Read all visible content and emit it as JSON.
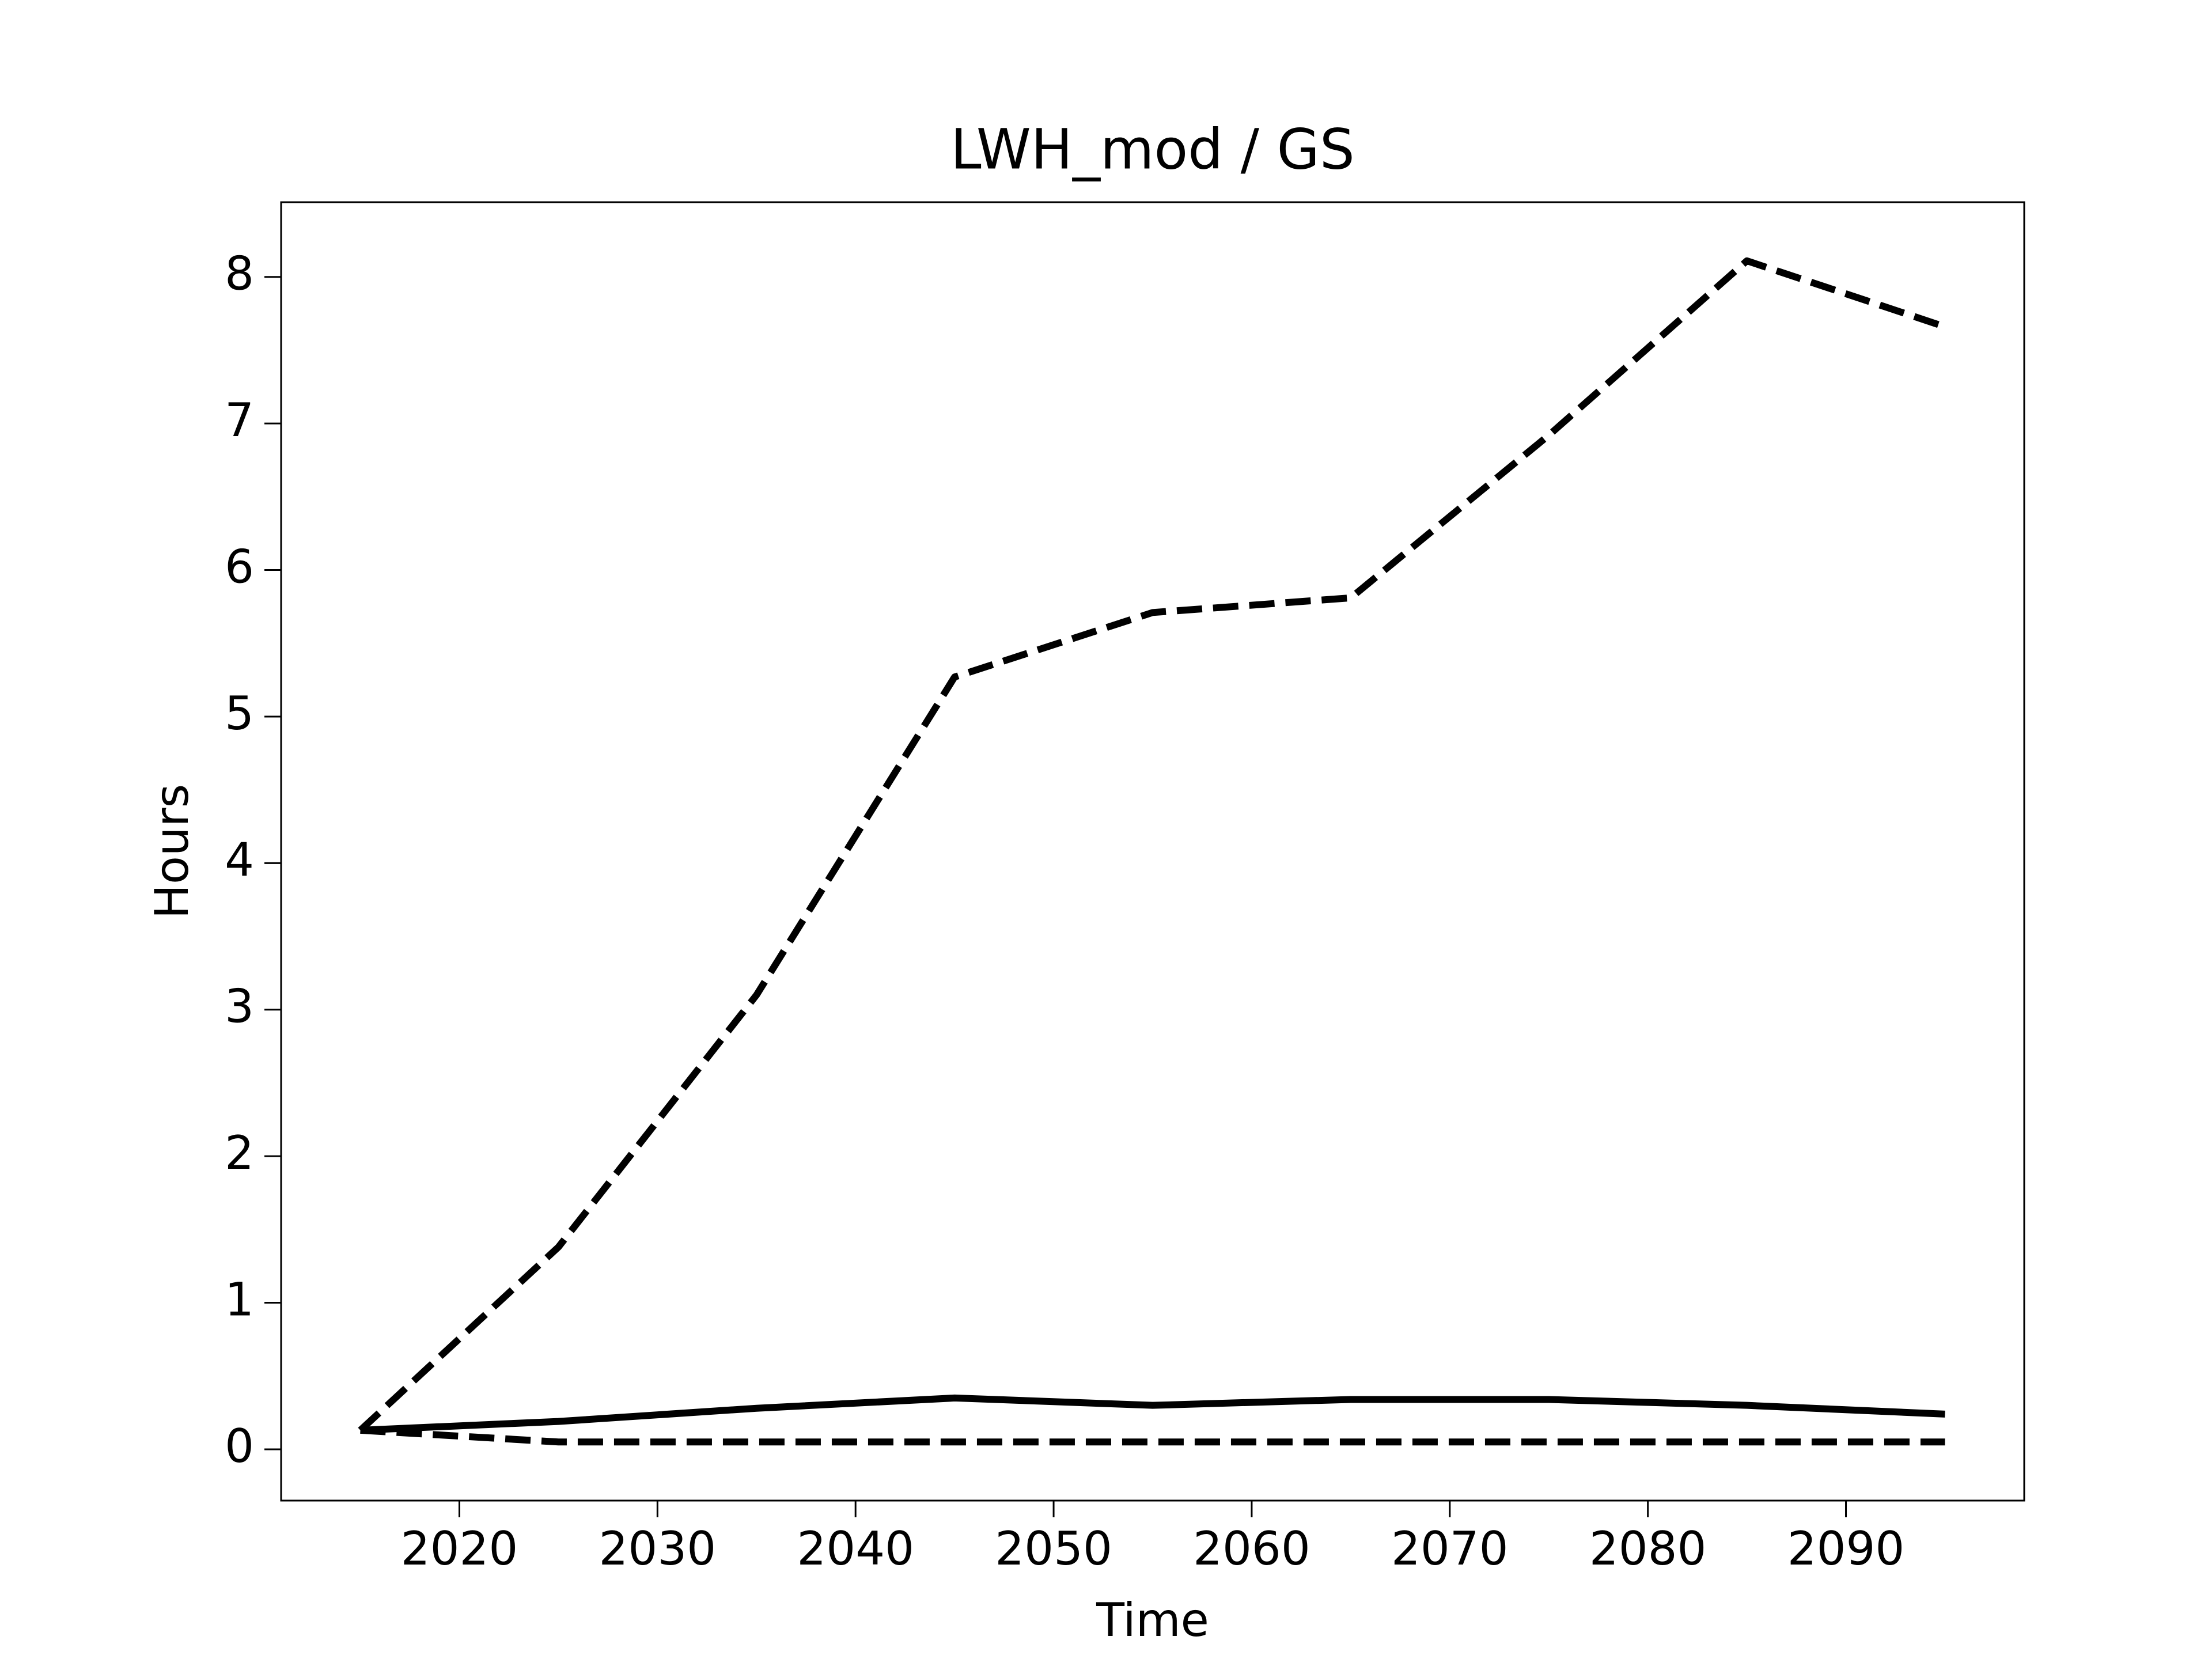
{
  "chart_data": {
    "type": "line",
    "title": "LWH_mod / GS",
    "xlabel": "Time",
    "ylabel": "Hours",
    "x": [
      2015,
      2025,
      2035,
      2045,
      2055,
      2065,
      2075,
      2085,
      2095
    ],
    "series": [
      {
        "color": "#000000",
        "linestyle": "dashed",
        "values": [
          0.13,
          1.38,
          3.1,
          5.27,
          5.71,
          5.81,
          6.92,
          8.11,
          7.66
        ]
      },
      {
        "color": "#000000",
        "linestyle": "solid",
        "values": [
          0.13,
          0.19,
          0.28,
          0.35,
          0.3,
          0.34,
          0.34,
          0.3,
          0.24
        ]
      },
      {
        "color": "#000000",
        "linestyle": "dashed",
        "values": [
          0.13,
          0.05,
          0.05,
          0.05,
          0.05,
          0.05,
          0.05,
          0.05,
          0.05
        ]
      }
    ],
    "xlim": [
      2011,
      2099
    ],
    "xticks": [
      2020,
      2030,
      2040,
      2050,
      2060,
      2070,
      2080,
      2090
    ],
    "ylim": [
      -0.35,
      8.51
    ],
    "yticks": [
      0,
      1,
      2,
      3,
      4,
      5,
      6,
      7,
      8
    ],
    "grid": false
  }
}
